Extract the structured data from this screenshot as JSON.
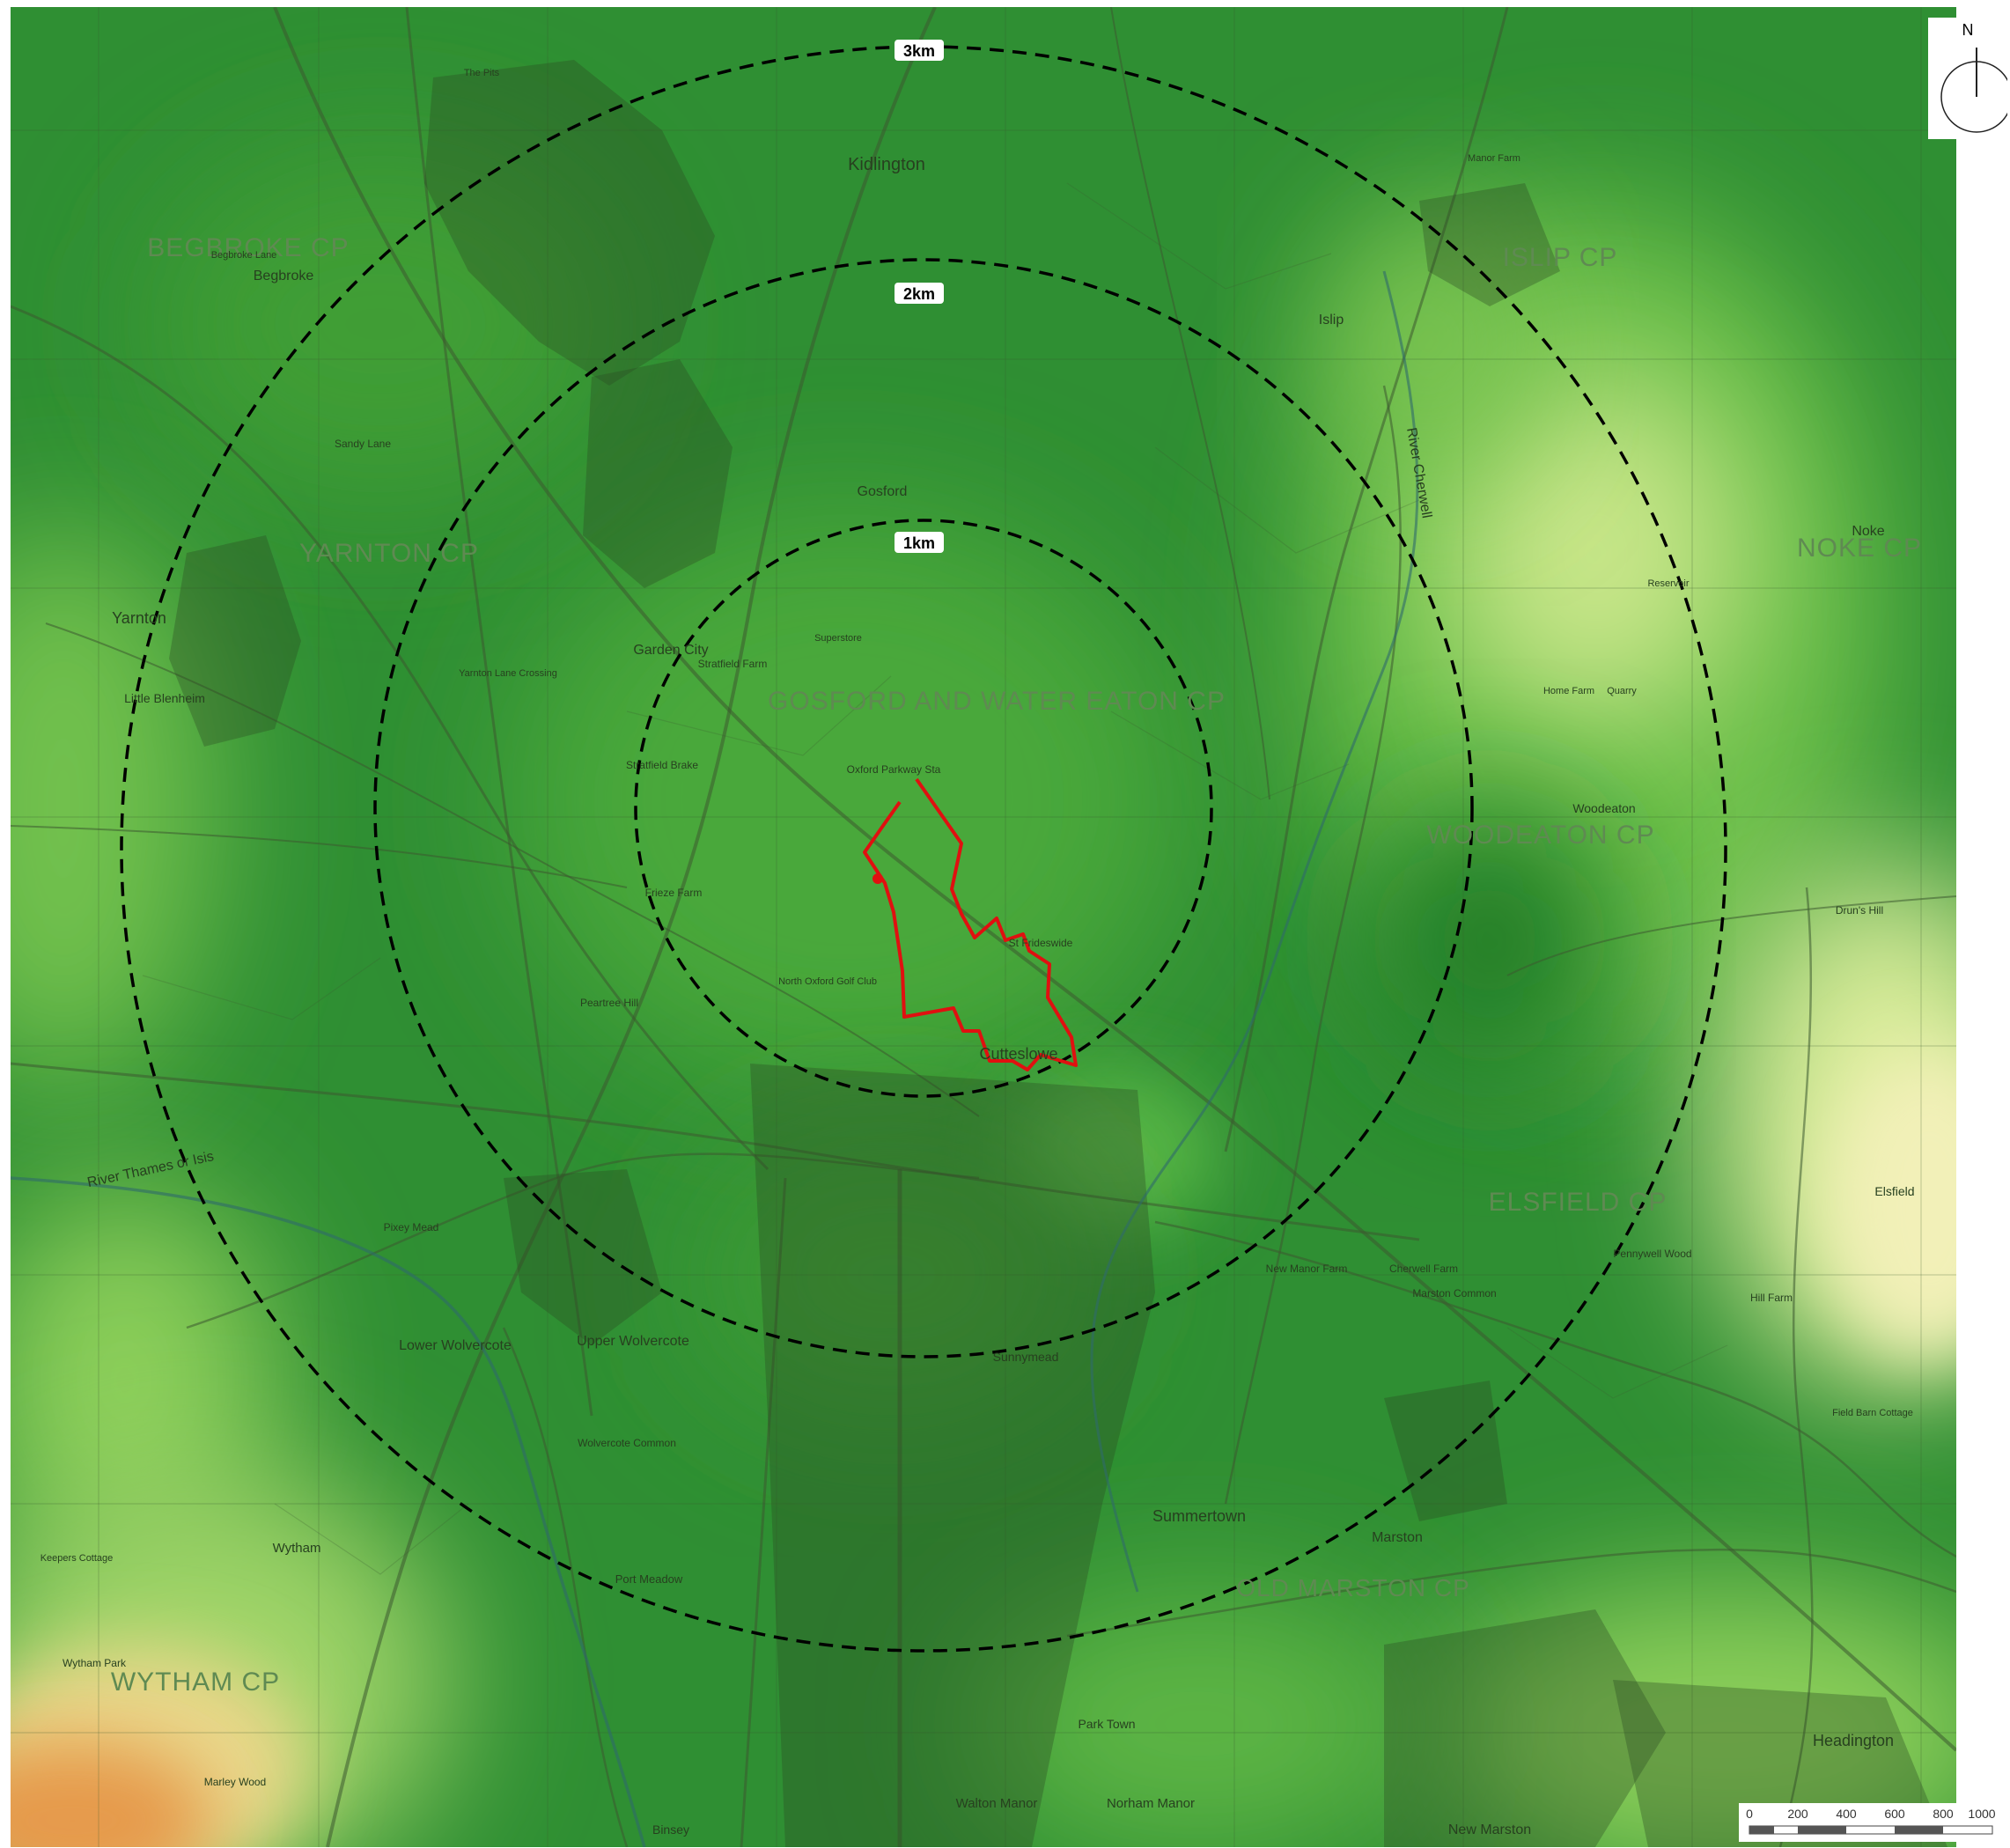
{
  "north_arrow": {
    "letter": "N",
    "icon": "north-arrow-icon"
  },
  "rings": [
    {
      "label": "1km",
      "radius_km": 1
    },
    {
      "label": "2km",
      "radius_km": 2
    },
    {
      "label": "3km",
      "radius_km": 3
    }
  ],
  "scale_bar": {
    "ticks": [
      "0",
      "200",
      "400",
      "600",
      "800",
      "1000"
    ],
    "colors": [
      "#ffffff",
      "#555555"
    ]
  },
  "site_boundary": {
    "color": "#e01010"
  },
  "colors": {
    "low_ground": "#2c8a2c",
    "mid_ground": "#5cb83c",
    "high_ground": "#f0f0b0",
    "highest_ground": "#e08830",
    "rings": "#000000"
  },
  "parishes": {
    "begbroke": "BEGBROKE CP",
    "yarnton": "YARNTON CP",
    "gosford": "GOSFORD AND WATER EATON CP",
    "islip": "ISLIP CP",
    "noke": "NOKE CP",
    "woodeaton": "WOODEATON CP",
    "elsfield": "ELSFIELD CP",
    "old_marston": "OLD MARSTON CP",
    "wytham": "WYTHAM CP"
  },
  "places": {
    "kidlington": "Kidlington",
    "begbroke": "Begbroke",
    "yarnton": "Yarnton",
    "little_blenheim": "Little Blenheim",
    "garden_city": "Garden City",
    "gosford": "Gosford",
    "oxford_parkway": "Oxford Parkway Sta",
    "cutteslowe": "Cutteslowe",
    "st_frideswide": "St Frideswide",
    "islip": "Islip",
    "noke": "Noke",
    "woodeaton": "Woodeaton",
    "elsfield": "Elsfield",
    "sunnymead": "Sunnymead",
    "summertown": "Summertown",
    "marston": "Marston",
    "headington": "Headington",
    "upper_wolvercote": "Upper Wolvercote",
    "lower_wolvercote": "Lower Wolvercote",
    "wytham": "Wytham",
    "port_meadow": "Port Meadow",
    "new_marston": "New Marston",
    "walton_manor": "Walton Manor",
    "norham_manor": "Norham Manor",
    "park_town": "Park Town",
    "binsey": "Binsey",
    "river_cherwell": "River Cherwell",
    "river_thames": "River Thames or Isis",
    "north_oxford_golf": "North Oxford Golf Club",
    "frieze_farm": "Frieze Farm",
    "peartree_hill": "Peartree Hill",
    "stratfield_farm": "Stratfield Farm",
    "stratfield_brake": "Stratfield Brake",
    "superstore": "Superstore",
    "hill_farm": "Hill Farm",
    "field_barn_cottage": "Field Barn Cottage",
    "drun_s_hill": "Drun's Hill",
    "wolvercote_common": "Wolvercote Common",
    "new_manor_farm": "New Manor Farm",
    "cherwell_farm": "Cherwell Farm",
    "marston_common": "Marston Common",
    "pennywell_wood": "Pennywell Wood",
    "the_pits": "The Pits",
    "sandy_lane": "Sandy Lane",
    "begbroke_lane": "Begbroke Lane",
    "yarnton_lane_crossing": "Yarnton Lane Crossing",
    "pixey_mead": "Pixey Mead",
    "wytham_park": "Wytham Park",
    "marley_wood": "Marley Wood",
    "keepers_cottage": "Keepers Cottage",
    "reservoir": "Reservoir",
    "quarry": "Quarry",
    "home_farm": "Home Farm",
    "manor_farm": "Manor Farm"
  }
}
